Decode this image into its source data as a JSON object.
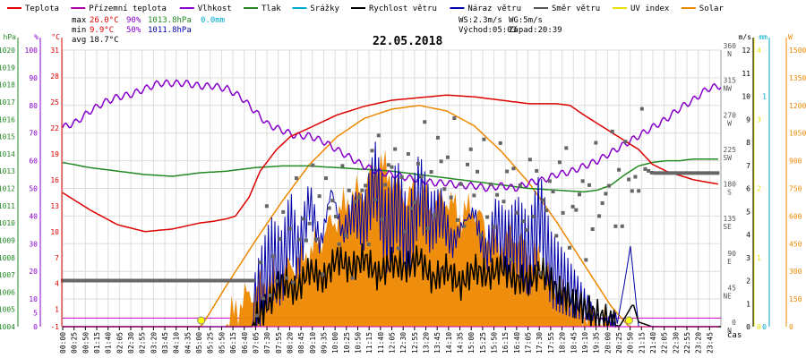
{
  "chart_data": {
    "type": "line",
    "title": "22.05.2018",
    "x_axis_label": "čas",
    "time_ticks": [
      "00:00",
      "00:25",
      "00:50",
      "01:15",
      "01:40",
      "02:05",
      "02:30",
      "02:55",
      "03:20",
      "03:45",
      "04:10",
      "04:35",
      "05:00",
      "05:25",
      "05:50",
      "06:15",
      "06:40",
      "07:05",
      "07:30",
      "07:55",
      "08:20",
      "08:45",
      "09:10",
      "09:35",
      "10:00",
      "10:25",
      "10:50",
      "11:15",
      "11:40",
      "12:05",
      "12:30",
      "12:55",
      "13:20",
      "13:45",
      "14:10",
      "14:35",
      "15:00",
      "15:25",
      "15:50",
      "16:15",
      "16:40",
      "17:05",
      "17:30",
      "17:55",
      "18:20",
      "18:45",
      "19:10",
      "19:35",
      "20:00",
      "20:25",
      "20:50",
      "21:15",
      "21:40",
      "22:05",
      "22:30",
      "22:55",
      "23:20",
      "23:45"
    ],
    "legend": [
      {
        "name": "Teplota",
        "color": "#dd0000"
      },
      {
        "name": "Přízemní teplota",
        "color": "#aa00aa"
      },
      {
        "name": "Vlhkost",
        "color": "#8800cc"
      },
      {
        "name": "Tlak",
        "color": "#228822"
      },
      {
        "name": "Srážky",
        "color": "#00aacc"
      },
      {
        "name": "Rychlost větru",
        "color": "#000000"
      },
      {
        "name": "Náraz větru",
        "color": "#0000aa"
      },
      {
        "name": "Směr větru",
        "color": "#555555"
      },
      {
        "name": "UV index",
        "color": "#e8e000"
      },
      {
        "name": "Solar",
        "color": "#ee8800"
      }
    ],
    "stats": {
      "max_label": "max",
      "max_temp": "26.0°C",
      "max_hum": "90%",
      "max_press": "1013.8hPa",
      "max_rain": "0.0mm",
      "min_label": "min",
      "min_temp": "9.9°C",
      "min_hum": "50%",
      "min_press": "1011.8hPa",
      "avg_label": "avg",
      "avg_temp": "18.7°C",
      "ws": "WS:2.3m/s",
      "wg": "WG:5m/s",
      "sunrise": "Východ:05:03",
      "sunset": "Západ:20:39"
    },
    "axes": {
      "left": [
        {
          "unit": "hPa",
          "color": "#228822",
          "ticks": [
            "1004",
            "1005",
            "1006",
            "1007",
            "1008",
            "1009",
            "1010",
            "1011",
            "1012",
            "1013",
            "1014",
            "1015",
            "1016",
            "1017",
            "1018",
            "1019",
            "1020"
          ]
        },
        {
          "unit": "%",
          "color": "#8800cc",
          "ticks": [
            "0",
            "5",
            "10",
            "20",
            "30",
            "40",
            "50",
            "60",
            "70",
            "80",
            "90",
            "100"
          ]
        },
        {
          "unit": "°C",
          "color": "#dd0000",
          "ticks": [
            "-1",
            "1",
            "4",
            "7",
            "10",
            "13",
            "16",
            "19",
            "22",
            "25",
            "28",
            "31"
          ]
        }
      ],
      "right": [
        {
          "unit": "m/s",
          "color": "#000000",
          "ticks": [
            "0",
            "1",
            "2",
            "3",
            "4",
            "5",
            "6",
            "7",
            "8",
            "9",
            "10",
            "11",
            "12"
          ]
        },
        {
          "unit": "mm",
          "color": "#00aacc",
          "ticks": [
            "0",
            "1"
          ]
        },
        {
          "unit": "W",
          "color": "#ee8800",
          "ticks": [
            "0",
            "150",
            "300",
            "450",
            "600",
            "750",
            "900",
            "1050",
            "1200",
            "1350",
            "1500"
          ]
        },
        {
          "unit": "",
          "color": "#e8e000",
          "ticks": [
            "0",
            "1",
            "2",
            "3",
            "4"
          ]
        }
      ],
      "direction_ticks": [
        {
          "deg": "0",
          "dir": "N"
        },
        {
          "deg": "45",
          "dir": "NE"
        },
        {
          "deg": "90",
          "dir": "E"
        },
        {
          "deg": "135",
          "dir": "SE"
        },
        {
          "deg": "180",
          "dir": "S"
        },
        {
          "deg": "225",
          "dir": "SW"
        },
        {
          "deg": "270",
          "dir": "W"
        },
        {
          "deg": "315",
          "dir": "NW"
        },
        {
          "deg": "360",
          "dir": "N"
        }
      ]
    },
    "series": {
      "temperature": {
        "unit": "°C",
        "times": [
          0,
          1,
          2,
          3,
          4,
          5,
          5.5,
          6,
          6.3,
          6.8,
          7.2,
          7.8,
          8.3,
          9,
          10,
          11,
          12,
          13,
          14,
          15,
          16,
          17,
          18,
          18.5,
          19,
          19.5,
          20,
          20.5,
          21,
          21.5,
          22,
          22.5,
          23,
          23.9
        ],
        "values": [
          14.5,
          12.5,
          10.8,
          10.0,
          10.3,
          11.0,
          11.2,
          11.5,
          11.8,
          14.0,
          17.0,
          19.5,
          21.0,
          22.0,
          23.5,
          24.5,
          25.2,
          25.5,
          25.8,
          25.6,
          25.2,
          24.8,
          24.8,
          24.6,
          23.5,
          22.5,
          21.5,
          20.5,
          19.5,
          17.8,
          17.0,
          16.5,
          16.0,
          15.5
        ]
      },
      "humidity": {
        "unit": "%",
        "times": [
          0,
          0.5,
          1,
          1.5,
          2,
          2.5,
          3,
          3.5,
          4,
          4.5,
          5,
          5.5,
          6,
          6.5,
          7,
          7.5,
          8,
          8.5,
          9,
          9.5,
          10,
          10.5,
          11,
          11.5,
          12,
          12.5,
          13,
          13.5,
          14,
          14.5,
          15,
          15.5,
          16,
          16.5,
          17,
          17.5,
          18,
          18.5,
          19,
          19.5,
          20,
          20.5,
          21,
          21.5,
          22,
          22.5,
          23,
          23.5,
          23.9
        ],
        "values": [
          72,
          74,
          78,
          81,
          83,
          84,
          86,
          88,
          88,
          88,
          87,
          87,
          86,
          83,
          78,
          73,
          71,
          69,
          69,
          67,
          64,
          61,
          58,
          56,
          55,
          54,
          53,
          52,
          52,
          51,
          51,
          50,
          51,
          50,
          52,
          53,
          55,
          56,
          58,
          60,
          63,
          66,
          69,
          72,
          75,
          79,
          82,
          86,
          87
        ]
      },
      "pressure": {
        "unit": "hPa",
        "times": [
          0,
          1,
          2,
          3,
          4,
          5,
          6,
          7,
          8,
          9,
          10,
          11,
          12,
          13,
          14,
          15,
          16,
          17,
          18,
          18.5,
          19,
          19.5,
          20,
          20.5,
          21,
          21.5,
          22,
          22.5,
          23,
          23.9
        ],
        "values": [
          1013.5,
          1013.2,
          1013.0,
          1012.8,
          1012.7,
          1012.9,
          1013.0,
          1013.2,
          1013.3,
          1013.3,
          1013.2,
          1013.1,
          1013.0,
          1012.8,
          1012.6,
          1012.4,
          1012.2,
          1012.0,
          1011.9,
          1011.85,
          1011.8,
          1011.9,
          1012.2,
          1012.8,
          1013.3,
          1013.5,
          1013.6,
          1013.6,
          1013.7,
          1013.7
        ]
      },
      "wind_speed": {
        "unit": "m/s",
        "times": [
          0,
          6.9,
          7,
          7.5,
          8,
          8.5,
          9,
          9.5,
          10,
          10.5,
          11,
          11.5,
          12,
          12.5,
          13,
          13.5,
          14,
          14.5,
          15,
          15.5,
          16,
          16.5,
          17,
          17.5,
          18,
          18.5,
          19,
          19.5,
          20,
          20.3,
          20.5,
          20.8,
          21,
          21.5,
          23.9
        ],
        "values": [
          0,
          0,
          0.3,
          1.0,
          2.0,
          1.5,
          2.5,
          2.0,
          3.0,
          2.5,
          3.0,
          2.2,
          2.8,
          2.5,
          3.0,
          2.0,
          2.5,
          1.8,
          2.5,
          2.2,
          2.6,
          2.0,
          2.0,
          2.4,
          1.6,
          1.2,
          0.8,
          0.5,
          0.2,
          0,
          0.4,
          1.0,
          0.2,
          0,
          0
        ]
      },
      "wind_gust": {
        "unit": "m/s",
        "times": [
          0,
          6.9,
          7.2,
          7.6,
          8,
          8.3,
          8.6,
          9,
          9.4,
          9.8,
          10.2,
          10.6,
          11,
          11.4,
          11.8,
          12.2,
          12.6,
          13,
          13.4,
          13.8,
          14.2,
          14.6,
          15,
          15.4,
          15.8,
          16.2,
          16.6,
          17,
          17.4,
          17.8,
          18.2,
          18.6,
          19,
          19.4,
          19.8,
          20.2,
          20.5,
          20.7,
          21,
          23.9
        ],
        "values": [
          0,
          0,
          1.5,
          3.0,
          2.5,
          4.5,
          3.0,
          5.5,
          3.5,
          6.0,
          4.0,
          5.0,
          4.5,
          6.5,
          4.0,
          5.5,
          3.5,
          6.0,
          4.5,
          5.0,
          3.5,
          4.5,
          5.0,
          3.0,
          4.5,
          3.5,
          4.0,
          3.0,
          5.0,
          2.5,
          2.0,
          1.5,
          1.0,
          0.5,
          0.2,
          0,
          2.0,
          3.5,
          0,
          0
        ]
      },
      "wind_direction": {
        "unit": "deg",
        "times": [
          0,
          2,
          4,
          6,
          7,
          7.5,
          8,
          8.5,
          9,
          9.5,
          10,
          10.5,
          11,
          11.5,
          12,
          12.5,
          13,
          13.5,
          14,
          14.5,
          15,
          15.5,
          16,
          16.5,
          17,
          17.5,
          18,
          18.5,
          19,
          19.5,
          20,
          20.5,
          21,
          21.5,
          22,
          23,
          23.9
        ],
        "values": [
          60,
          60,
          60,
          60,
          60,
          80,
          100,
          120,
          150,
          140,
          160,
          130,
          170,
          190,
          200,
          150,
          210,
          180,
          220,
          170,
          200,
          160,
          190,
          150,
          170,
          140,
          180,
          160,
          150,
          170,
          190,
          180,
          210,
          200,
          200,
          200,
          200
        ]
      },
      "solar": {
        "unit": "W/m2",
        "times": [
          0,
          5.5,
          6,
          6.3,
          7,
          8,
          9,
          10,
          10.5,
          11,
          11.5,
          12,
          12.5,
          13,
          13.5,
          14,
          14.5,
          15,
          15.5,
          16,
          16.5,
          17,
          17.5,
          18,
          18.5,
          19,
          19.5,
          19.8,
          20,
          23.9
        ],
        "values": [
          0,
          0,
          0,
          100,
          200,
          300,
          400,
          600,
          700,
          750,
          900,
          800,
          700,
          750,
          650,
          700,
          600,
          650,
          500,
          450,
          500,
          400,
          350,
          200,
          150,
          80,
          40,
          10,
          0,
          0
        ]
      },
      "solar_theoretical": {
        "unit": "W/m2",
        "times": [
          0,
          5.05,
          6,
          7,
          8,
          9,
          10,
          11,
          12,
          13,
          14,
          15,
          16,
          17,
          18,
          19,
          20,
          20.65,
          23.9
        ],
        "values": [
          0,
          0,
          230,
          460,
          680,
          880,
          1030,
          1130,
          1180,
          1200,
          1170,
          1090,
          950,
          780,
          570,
          340,
          110,
          0,
          0
        ]
      },
      "uv_index": {
        "unit": "",
        "times": [
          0,
          23.9
        ],
        "values": [
          0,
          0
        ]
      }
    },
    "sun_markers": [
      "05:03",
      "20:39"
    ]
  }
}
